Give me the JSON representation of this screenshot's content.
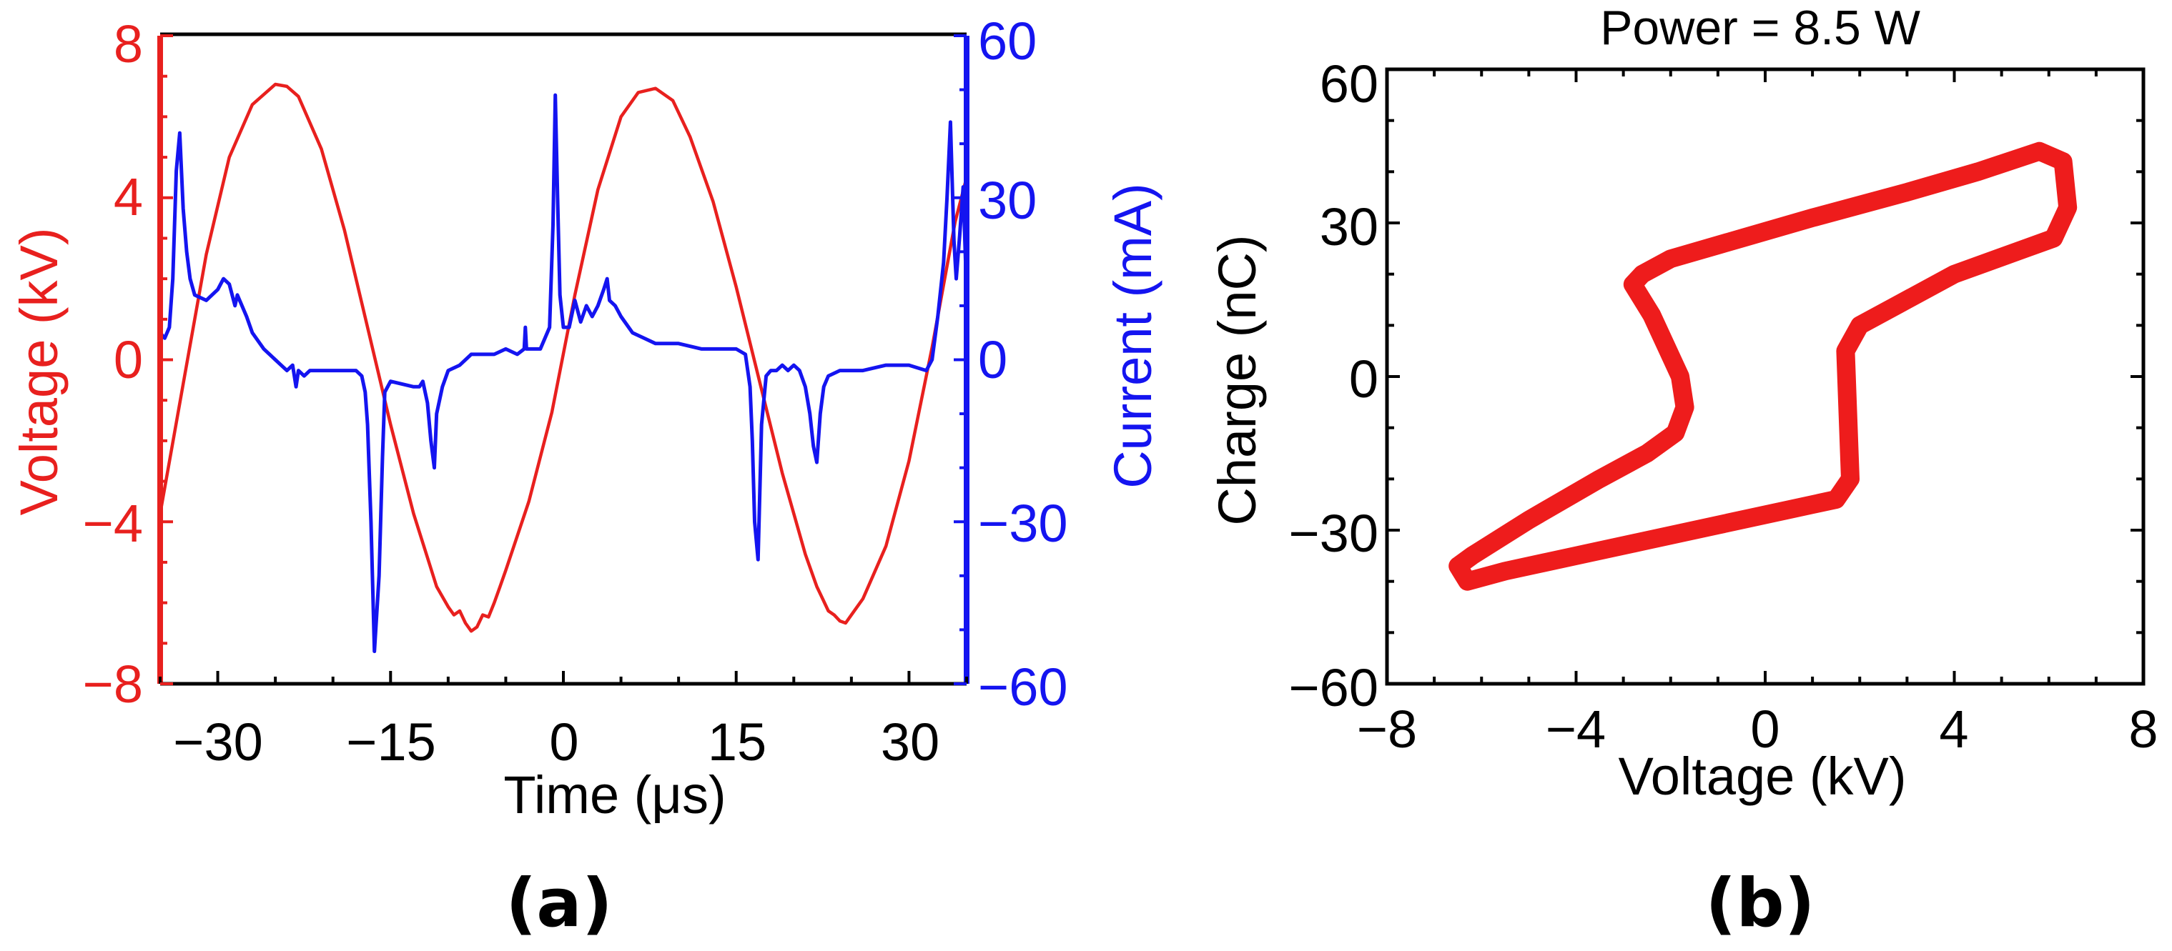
{
  "chart_data": [
    {
      "type": "line",
      "panel_label": "(a)",
      "xlabel": "Time (μs)",
      "ylabel": "Voltage (kV)",
      "ylabel_right": "Current (mA)",
      "xlim": [
        -35,
        35
      ],
      "ylim": [
        -8,
        8
      ],
      "ylim_right": [
        -60,
        60
      ],
      "xticks": [
        -30,
        -15,
        0,
        15,
        30
      ],
      "xtick_labels": [
        "−30",
        "−15",
        "0",
        "15",
        "30"
      ],
      "yticks": [
        -8,
        -4,
        0,
        4,
        8
      ],
      "ytick_labels": [
        "−8",
        "−4",
        "0",
        "4",
        "8"
      ],
      "yticks_right": [
        -60,
        -30,
        0,
        30,
        60
      ],
      "ytick_labels_right": [
        "−60",
        "−30",
        "0",
        "30",
        "60"
      ],
      "colors": {
        "voltage": "#e8201e",
        "current": "#1414f0"
      },
      "series": [
        {
          "name": "Voltage",
          "axis": "left",
          "color": "#e8201e",
          "x": [
            -35,
            -33,
            -31,
            -29,
            -27,
            -25,
            -24,
            -23,
            -21,
            -19,
            -17,
            -15,
            -13,
            -11,
            -10,
            -9.5,
            -9,
            -8.5,
            -8,
            -7.5,
            -7,
            -6.5,
            -6,
            -5.5,
            -5,
            -3,
            -1,
            1,
            3,
            5,
            6.5,
            8,
            9.5,
            11,
            13,
            15,
            17,
            19,
            21,
            22,
            22.5,
            23,
            23.5,
            24,
            24.5,
            25,
            25.5,
            26,
            28,
            30,
            32,
            34,
            35
          ],
          "values": [
            -3.8,
            -0.6,
            2.6,
            5.0,
            6.3,
            6.8,
            6.75,
            6.5,
            5.2,
            3.2,
            0.8,
            -1.6,
            -3.8,
            -5.6,
            -6.1,
            -6.3,
            -6.2,
            -6.5,
            -6.7,
            -6.6,
            -6.3,
            -6.35,
            -6.0,
            -5.6,
            -5.2,
            -3.5,
            -1.3,
            1.6,
            4.2,
            6.0,
            6.6,
            6.7,
            6.4,
            5.5,
            3.9,
            1.8,
            -0.5,
            -2.8,
            -4.8,
            -5.6,
            -5.9,
            -6.2,
            -6.3,
            -6.45,
            -6.5,
            -6.3,
            -6.1,
            -5.9,
            -4.6,
            -2.5,
            0.3,
            3.4,
            4.5
          ]
        },
        {
          "name": "Current",
          "axis": "right",
          "color": "#1414f0",
          "x": [
            -35,
            -34.6,
            -34.2,
            -33.9,
            -33.6,
            -33.3,
            -33.0,
            -32.7,
            -32.4,
            -32,
            -31,
            -30,
            -29.5,
            -29,
            -28.5,
            -28.3,
            -27.5,
            -27,
            -26,
            -25,
            -24,
            -23.5,
            -23.2,
            -23.0,
            -22.5,
            -22,
            -20,
            -18,
            -17.5,
            -17.2,
            -17.0,
            -16.7,
            -16.4,
            -16.0,
            -15.7,
            -15.5,
            -15,
            -13,
            -12.5,
            -12.2,
            -11.8,
            -11.5,
            -11.2,
            -11.0,
            -10.5,
            -10,
            -9,
            -8,
            -6,
            -5,
            -4,
            -3.4,
            -3.3,
            -3.2,
            -2,
            -1.2,
            -0.9,
            -0.7,
            -0.5,
            -0.3,
            0,
            0.5,
            1,
            1.5,
            2,
            2.5,
            3,
            3.5,
            3.8,
            4.0,
            4.5,
            5,
            6,
            7,
            8,
            10,
            12,
            14,
            15,
            15.8,
            16.2,
            16.4,
            16.6,
            16.9,
            17.2,
            17.6,
            18,
            18.5,
            19,
            19.5,
            20,
            20.5,
            21,
            21.4,
            21.7,
            22.0,
            22.3,
            22.6,
            23,
            24,
            26,
            28,
            30,
            31.5,
            32,
            32.5,
            33,
            33.3,
            33.6,
            33.9,
            34.1,
            34.4,
            34.7,
            35
          ],
          "values": [
            5,
            4,
            6,
            15,
            35,
            42,
            28,
            20,
            15,
            12,
            11,
            13,
            15,
            14,
            10,
            12,
            8,
            5,
            2,
            0,
            -2,
            -1,
            -5,
            -2,
            -3,
            -2,
            -2,
            -2,
            -3,
            -6,
            -12,
            -30,
            -54,
            -40,
            -18,
            -6,
            -4,
            -5,
            -5,
            -4,
            -8,
            -15,
            -20,
            -10,
            -5,
            -2,
            -1,
            1,
            1,
            2,
            1,
            2,
            6,
            2,
            2,
            6,
            25,
            49,
            30,
            12,
            6,
            6,
            11,
            7,
            10,
            8,
            10,
            13,
            15,
            11,
            10,
            8,
            5,
            4,
            3,
            3,
            2,
            2,
            2,
            1,
            -5,
            -15,
            -30,
            -37,
            -12,
            -3,
            -2,
            -2,
            -1,
            -2,
            -1,
            -2,
            -5,
            -10,
            -16,
            -19,
            -10,
            -5,
            -3,
            -2,
            -2,
            -1,
            -1,
            -2,
            0,
            8,
            18,
            30,
            44,
            22,
            15,
            23,
            32,
            12
          ]
        }
      ]
    },
    {
      "type": "line",
      "panel_label": "(b)",
      "title": "Power = 8.5 W",
      "xlabel": "Voltage (kV)",
      "ylabel": "Charge (nC)",
      "xlim": [
        -8,
        8
      ],
      "ylim": [
        -60,
        60
      ],
      "xticks": [
        -8,
        -4,
        0,
        4,
        8
      ],
      "xtick_labels": [
        "−8",
        "−4",
        "0",
        "4",
        "8"
      ],
      "yticks": [
        -60,
        -30,
        0,
        30,
        60
      ],
      "ytick_labels": [
        "−60",
        "−30",
        "0",
        "30",
        "60"
      ],
      "colors": {
        "loop": "#ee1c1c"
      },
      "series": [
        {
          "name": "Charge-Voltage Lissajous loop",
          "color": "#ee1c1c",
          "x": [
            -6.2,
            -5.0,
            -3.5,
            -2.5,
            -1.9,
            -1.7,
            -1.8,
            -2.4,
            -2.8,
            -2.6,
            -2.0,
            -0.5,
            1.0,
            3.0,
            4.5,
            5.8,
            6.3,
            6.4,
            6.1,
            5.5,
            4.0,
            2.8,
            2.0,
            1.7,
            1.8,
            1.5,
            0.5,
            -1.0,
            -2.5,
            -4.0,
            -5.5,
            -6.3,
            -6.5,
            -6.2
          ],
          "values": [
            -35,
            -28,
            -20,
            -15,
            -11,
            -6,
            0,
            12,
            18,
            20,
            23,
            27,
            31,
            36,
            40,
            44,
            42,
            33,
            27,
            25,
            20,
            14,
            10,
            5,
            -20,
            -24,
            -26,
            -29,
            -32,
            -35,
            -38,
            -40,
            -37,
            -35
          ]
        }
      ]
    }
  ]
}
